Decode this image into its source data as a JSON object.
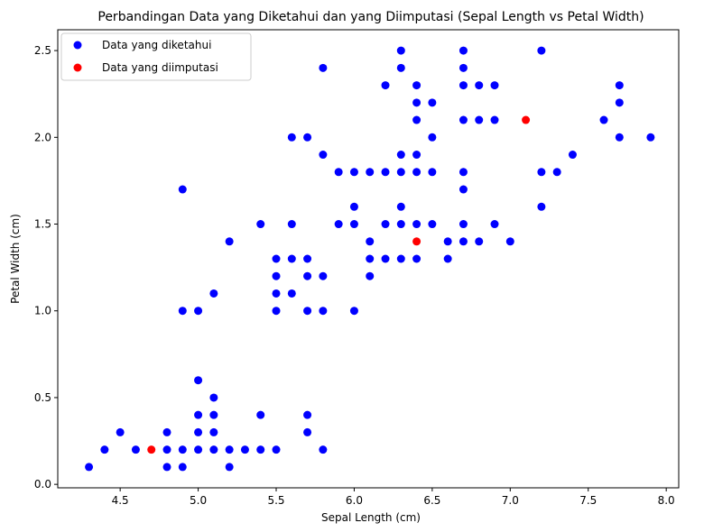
{
  "chart_data": {
    "type": "scatter",
    "title": "Perbandingan Data yang Diketahui dan yang Diimputasi (Sepal Length vs Petal Width)",
    "xlabel": "Sepal Length (cm)",
    "ylabel": "Petal Width (cm)",
    "xlim": [
      4.1,
      8.08
    ],
    "ylim": [
      -0.02,
      2.62
    ],
    "xticks": [
      4.5,
      5.0,
      5.5,
      6.0,
      6.5,
      7.0,
      7.5,
      8.0
    ],
    "xtick_labels": [
      "4.5",
      "5.0",
      "5.5",
      "6.0",
      "6.5",
      "7.0",
      "7.5",
      "8.0"
    ],
    "yticks": [
      0.0,
      0.5,
      1.0,
      1.5,
      2.0,
      2.5
    ],
    "ytick_labels": [
      "0.0",
      "0.5",
      "1.0",
      "1.5",
      "2.0",
      "2.5"
    ],
    "grid": false,
    "legend_position": "top-left",
    "series": [
      {
        "name": "Data yang diketahui",
        "color": "#0000ff",
        "points": [
          [
            4.3,
            0.1
          ],
          [
            4.4,
            0.2
          ],
          [
            4.5,
            0.3
          ],
          [
            4.6,
            0.2
          ],
          [
            4.8,
            0.1
          ],
          [
            4.8,
            0.2
          ],
          [
            4.8,
            0.3
          ],
          [
            4.9,
            0.1
          ],
          [
            4.9,
            0.2
          ],
          [
            4.9,
            1.0
          ],
          [
            4.9,
            1.7
          ],
          [
            5.0,
            0.2
          ],
          [
            5.0,
            0.3
          ],
          [
            5.0,
            0.4
          ],
          [
            5.0,
            0.6
          ],
          [
            5.0,
            1.0
          ],
          [
            5.1,
            0.2
          ],
          [
            5.1,
            0.3
          ],
          [
            5.1,
            0.4
          ],
          [
            5.1,
            0.5
          ],
          [
            5.1,
            1.1
          ],
          [
            5.2,
            0.1
          ],
          [
            5.2,
            0.2
          ],
          [
            5.2,
            1.4
          ],
          [
            5.3,
            0.2
          ],
          [
            5.4,
            0.2
          ],
          [
            5.4,
            0.4
          ],
          [
            5.4,
            1.5
          ],
          [
            5.5,
            0.2
          ],
          [
            5.5,
            1.0
          ],
          [
            5.5,
            1.1
          ],
          [
            5.5,
            1.2
          ],
          [
            5.5,
            1.3
          ],
          [
            5.6,
            1.1
          ],
          [
            5.6,
            1.3
          ],
          [
            5.6,
            1.5
          ],
          [
            5.6,
            2.0
          ],
          [
            5.7,
            0.3
          ],
          [
            5.7,
            0.4
          ],
          [
            5.7,
            1.0
          ],
          [
            5.7,
            1.2
          ],
          [
            5.7,
            1.3
          ],
          [
            5.7,
            2.0
          ],
          [
            5.8,
            0.2
          ],
          [
            5.8,
            1.0
          ],
          [
            5.8,
            1.2
          ],
          [
            5.8,
            1.9
          ],
          [
            5.8,
            2.4
          ],
          [
            5.9,
            1.5
          ],
          [
            5.9,
            1.8
          ],
          [
            6.0,
            1.0
          ],
          [
            6.0,
            1.5
          ],
          [
            6.0,
            1.6
          ],
          [
            6.0,
            1.8
          ],
          [
            6.1,
            1.2
          ],
          [
            6.1,
            1.3
          ],
          [
            6.1,
            1.4
          ],
          [
            6.1,
            1.8
          ],
          [
            6.2,
            1.3
          ],
          [
            6.2,
            1.5
          ],
          [
            6.2,
            1.8
          ],
          [
            6.2,
            2.3
          ],
          [
            6.3,
            1.3
          ],
          [
            6.3,
            1.5
          ],
          [
            6.3,
            1.6
          ],
          [
            6.3,
            1.8
          ],
          [
            6.3,
            1.9
          ],
          [
            6.3,
            2.4
          ],
          [
            6.3,
            2.5
          ],
          [
            6.4,
            1.3
          ],
          [
            6.4,
            1.5
          ],
          [
            6.4,
            1.8
          ],
          [
            6.4,
            1.9
          ],
          [
            6.4,
            2.1
          ],
          [
            6.4,
            2.2
          ],
          [
            6.4,
            2.3
          ],
          [
            6.5,
            1.5
          ],
          [
            6.5,
            1.8
          ],
          [
            6.5,
            2.0
          ],
          [
            6.5,
            2.2
          ],
          [
            6.6,
            1.3
          ],
          [
            6.6,
            1.4
          ],
          [
            6.7,
            1.4
          ],
          [
            6.7,
            1.5
          ],
          [
            6.7,
            1.7
          ],
          [
            6.7,
            1.8
          ],
          [
            6.7,
            2.1
          ],
          [
            6.7,
            2.3
          ],
          [
            6.7,
            2.4
          ],
          [
            6.7,
            2.5
          ],
          [
            6.8,
            1.4
          ],
          [
            6.8,
            2.1
          ],
          [
            6.8,
            2.3
          ],
          [
            6.9,
            1.5
          ],
          [
            6.9,
            2.1
          ],
          [
            6.9,
            2.3
          ],
          [
            7.0,
            1.4
          ],
          [
            7.2,
            1.6
          ],
          [
            7.2,
            1.8
          ],
          [
            7.2,
            2.5
          ],
          [
            7.3,
            1.8
          ],
          [
            7.4,
            1.9
          ],
          [
            7.6,
            2.1
          ],
          [
            7.7,
            2.0
          ],
          [
            7.7,
            2.2
          ],
          [
            7.7,
            2.3
          ],
          [
            7.9,
            2.0
          ]
        ]
      },
      {
        "name": "Data yang diimputasi",
        "color": "#ff0000",
        "points": [
          [
            4.7,
            0.2
          ],
          [
            6.4,
            1.4
          ],
          [
            7.1,
            2.1
          ]
        ]
      }
    ]
  }
}
